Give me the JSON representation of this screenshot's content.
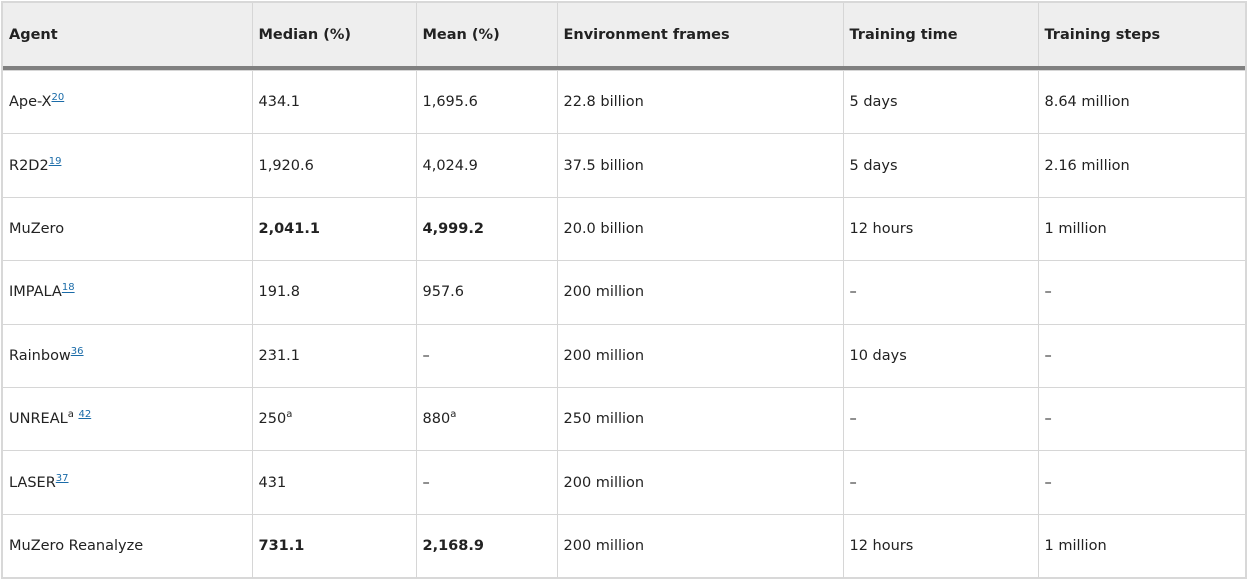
{
  "table": {
    "headers": [
      "Agent",
      "Median (%)",
      "Mean (%)",
      "Environment frames",
      "Training time",
      "Training steps"
    ],
    "rows": [
      {
        "agent": "Ape-X",
        "agent_sup_mark": "",
        "agent_ref": "20",
        "median": "434.1",
        "median_sup": "",
        "mean": "1,695.6",
        "mean_sup": "",
        "frames": "22.8 billion",
        "time": "5 days",
        "steps": "8.64 million"
      },
      {
        "agent": "R2D2",
        "agent_sup_mark": "",
        "agent_ref": "19",
        "median": "1,920.6",
        "median_sup": "",
        "mean": "4,024.9",
        "mean_sup": "",
        "frames": "37.5 billion",
        "time": "5 days",
        "steps": "2.16 million"
      },
      {
        "agent": "MuZero",
        "agent_sup_mark": "",
        "agent_ref": "",
        "median": "2,041.1",
        "median_sup": "",
        "mean": "4,999.2",
        "mean_sup": "",
        "frames": "20.0 billion",
        "time": "12 hours",
        "steps": "1 million"
      },
      {
        "agent": "IMPALA",
        "agent_sup_mark": "",
        "agent_ref": "18",
        "median": "191.8",
        "median_sup": "",
        "mean": "957.6",
        "mean_sup": "",
        "frames": "200 million",
        "time": "–",
        "steps": "–"
      },
      {
        "agent": "Rainbow",
        "agent_sup_mark": "",
        "agent_ref": "36",
        "median": "231.1",
        "median_sup": "",
        "mean": "–",
        "mean_sup": "",
        "frames": "200 million",
        "time": "10 days",
        "steps": "–"
      },
      {
        "agent": "UNREAL",
        "agent_sup_mark": "a",
        "agent_ref": "42",
        "median": "250",
        "median_sup": "a",
        "mean": "880",
        "mean_sup": "a",
        "frames": "250 million",
        "time": "–",
        "steps": "–"
      },
      {
        "agent": "LASER",
        "agent_sup_mark": "",
        "agent_ref": "37",
        "median": "431",
        "median_sup": "",
        "mean": "–",
        "mean_sup": "",
        "frames": "200 million",
        "time": "–",
        "steps": "–"
      },
      {
        "agent": "MuZero Reanalyze",
        "agent_sup_mark": "",
        "agent_ref": "",
        "median": "731.1",
        "median_sup": "",
        "mean": "2,168.9",
        "mean_sup": "",
        "frames": "200 million",
        "time": "12 hours",
        "steps": "1 million"
      }
    ],
    "bold_rows": [
      "MuZero",
      "MuZero Reanalyze"
    ],
    "colors": {
      "header_bg": "#eeeeee",
      "header_rule": "#808080",
      "border": "#d6d6d6",
      "link": "#1a6ba8"
    }
  }
}
